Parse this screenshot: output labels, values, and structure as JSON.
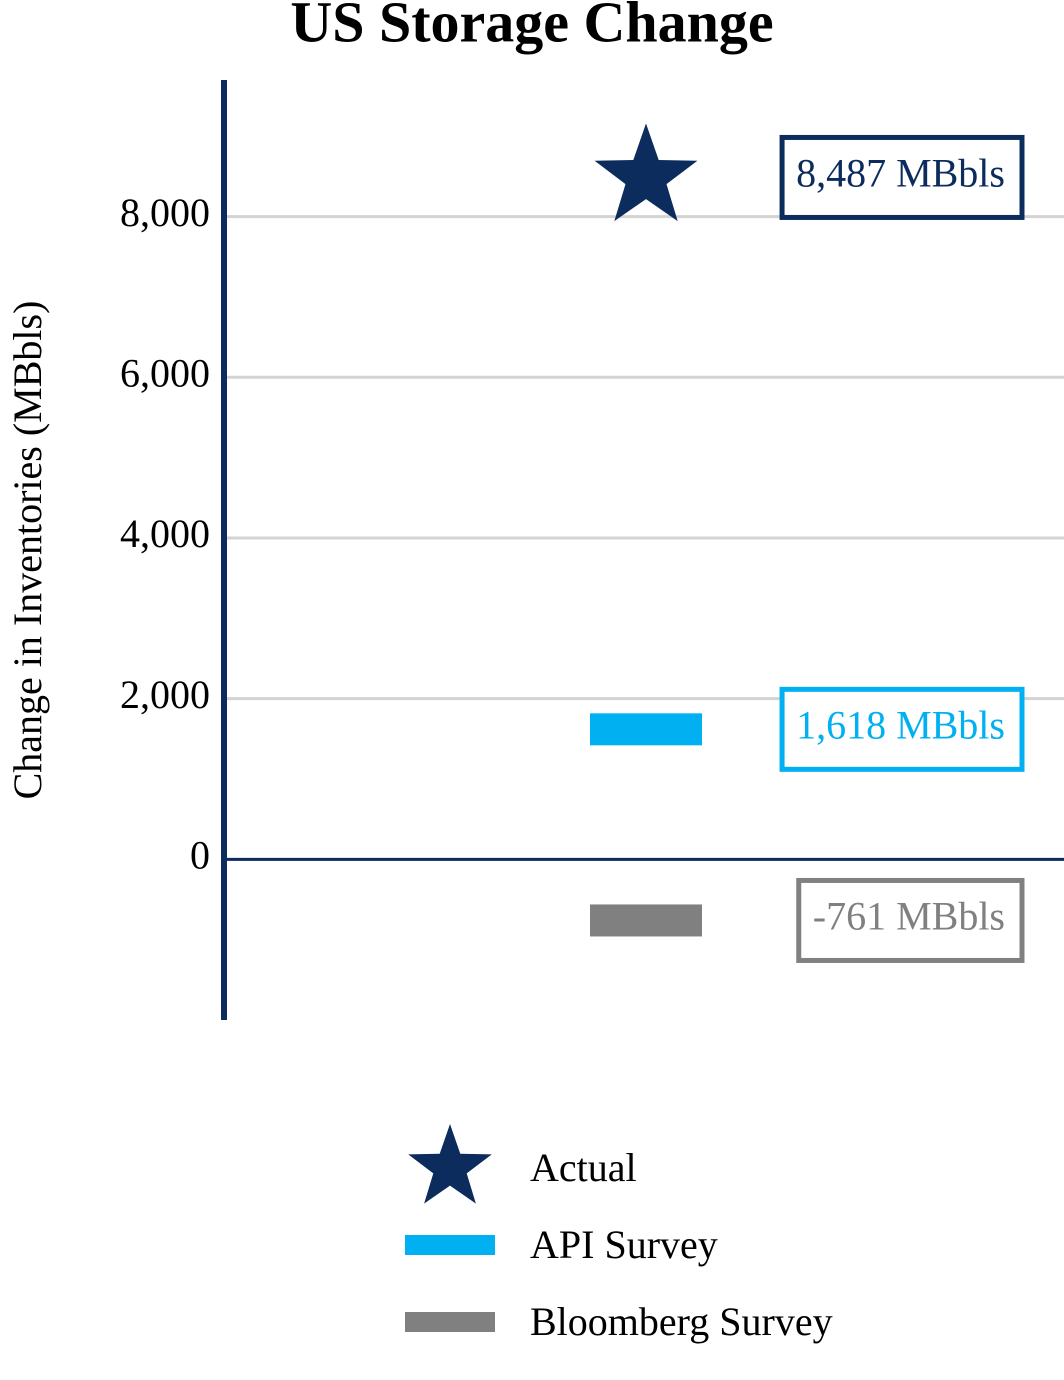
{
  "chart_data": {
    "type": "marker",
    "title": "US Storage Change",
    "y_label": "Change in Inventories (MBbls)",
    "series": [
      {
        "name": "Actual",
        "color": "#0b2c5c",
        "marker": "star",
        "values": [
          8487
        ],
        "value_labels": [
          "8,487 MBbls"
        ]
      },
      {
        "name": "API Survey",
        "color": "#00b0f0",
        "marker": "dash",
        "values": [
          1618
        ],
        "value_labels": [
          "1,618 MBbls"
        ]
      },
      {
        "name": "Bloomberg Survey",
        "color": "#808080",
        "marker": "dash",
        "values": [
          -761
        ],
        "value_labels": [
          "-761 MBbls"
        ]
      }
    ],
    "ylim": [
      -2000,
      9700
    ],
    "yticks": [
      0,
      {
        "value": 2000,
        "label": "2,000"
      },
      {
        "value": 4000,
        "label": "4,000"
      },
      {
        "value": 6000,
        "label": "6,000"
      },
      {
        "value": 8000,
        "label": "8,000"
      }
    ],
    "grid": true,
    "legend": "bottom"
  }
}
